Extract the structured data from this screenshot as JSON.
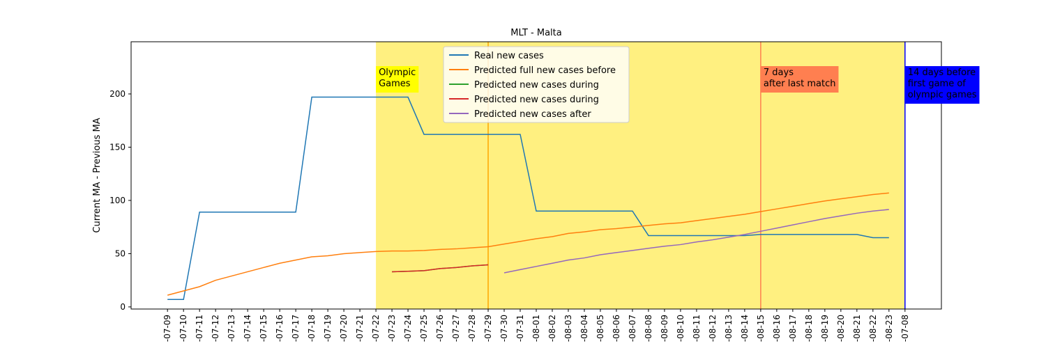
{
  "chart_data": {
    "type": "line",
    "title": "MLT - Malta",
    "y_label": "Current MA - Previous MA",
    "categories": [
      "-07-09",
      "-07-10",
      "-07-11",
      "-07-12",
      "-07-13",
      "-07-14",
      "-07-15",
      "-07-16",
      "-07-17",
      "-07-18",
      "-07-19",
      "-07-20",
      "-07-21",
      "-07-22",
      "-07-23",
      "-07-24",
      "-07-25",
      "-07-26",
      "-07-27",
      "-07-28",
      "-07-29",
      "-07-30",
      "-07-31",
      "-08-01",
      "-08-02",
      "-08-03",
      "-08-04",
      "-08-05",
      "-08-06",
      "-08-07",
      "-08-08",
      "-08-09",
      "-08-10",
      "-08-11",
      "-08-12",
      "-08-13",
      "-08-14",
      "-08-15",
      "-08-16",
      "-08-17",
      "-08-18",
      "-08-19",
      "-08-20",
      "-08-21",
      "-08-22",
      "-08-23",
      "-07-08"
    ],
    "series": [
      {
        "name": "Real new cases",
        "color": "#1f77b4",
        "values": [
          7,
          7,
          89,
          89,
          89,
          89,
          89,
          89,
          89,
          197,
          197,
          197,
          197,
          197,
          197,
          197,
          162,
          162,
          162,
          162,
          162,
          162,
          162,
          90,
          90,
          90,
          90,
          90,
          90,
          90,
          67,
          67,
          67,
          67,
          67,
          67,
          67,
          68,
          68,
          68,
          68,
          68,
          68,
          68,
          65,
          65,
          null
        ]
      },
      {
        "name": "Predicted full new cases before",
        "color": "#ff7f0e",
        "values": [
          11,
          15,
          19,
          25,
          29,
          33,
          37,
          41,
          44,
          47,
          48,
          50,
          51,
          52,
          52.5,
          52.5,
          53,
          54,
          54.5,
          55.5,
          56.5,
          59,
          61.5,
          64,
          66,
          69,
          70.5,
          72.5,
          73.5,
          75,
          76.5,
          78,
          79,
          81,
          83,
          85,
          87,
          89.5,
          92,
          94.5,
          97,
          99.5,
          101.5,
          103.5,
          105.5,
          107,
          null
        ]
      },
      {
        "name": "Predicted new cases during",
        "color": "#2ca02c",
        "values": [
          null,
          null,
          null,
          null,
          null,
          null,
          null,
          null,
          null,
          null,
          null,
          null,
          null,
          null,
          33,
          33.5,
          34,
          36,
          37,
          38.5,
          39.5,
          null,
          null,
          null,
          null,
          null,
          null,
          null,
          null,
          null,
          null,
          null,
          null,
          null,
          null,
          null,
          null,
          null,
          null,
          null,
          null,
          null,
          null,
          null,
          null,
          null,
          null
        ]
      },
      {
        "name": "Predicted new cases during",
        "color": "#d62728",
        "values": [
          null,
          null,
          null,
          null,
          null,
          null,
          null,
          null,
          null,
          null,
          null,
          null,
          null,
          null,
          33,
          33.5,
          34,
          36,
          37,
          38.5,
          39.5,
          null,
          null,
          null,
          null,
          null,
          null,
          null,
          null,
          null,
          null,
          null,
          null,
          null,
          null,
          null,
          null,
          null,
          null,
          null,
          null,
          null,
          null,
          null,
          null,
          null,
          null
        ]
      },
      {
        "name": "Predicted new cases after",
        "color": "#9467bd",
        "values": [
          null,
          null,
          null,
          null,
          null,
          null,
          null,
          null,
          null,
          null,
          null,
          null,
          null,
          null,
          null,
          null,
          null,
          null,
          null,
          null,
          null,
          32,
          35,
          38,
          41,
          44,
          46,
          49,
          51,
          53,
          55,
          57,
          58.5,
          61,
          63,
          65.5,
          68,
          71,
          74,
          77,
          80,
          83,
          85.5,
          88,
          90,
          91.5,
          null
        ]
      }
    ],
    "ylim": [
      -2,
      249
    ],
    "yticks": [
      0,
      50,
      100,
      150,
      200
    ],
    "shaded_span": {
      "from": "-07-22",
      "to": "-07-08",
      "color": "#fff080"
    },
    "vertical_lines": [
      {
        "at": "-07-29",
        "color": "#ffa500"
      },
      {
        "at": "-08-15",
        "color": "#ff7f50"
      },
      {
        "at": "-07-08",
        "color": "#0000ff"
      }
    ],
    "annotations": [
      {
        "at": "-07-22",
        "lines": [
          "Olympic",
          "Games"
        ],
        "color": "#ffff00",
        "text_color": "#000000"
      },
      {
        "at": "-08-15",
        "lines": [
          "7 days",
          "after last match"
        ],
        "color": "#ff7f50",
        "text_color": "#000000"
      },
      {
        "at": "-07-08",
        "lines": [
          "14 days before",
          "first game of",
          "olympic games"
        ],
        "color": "#0000ff",
        "text_color": "#ffffff"
      }
    ],
    "legend": "upper center"
  }
}
